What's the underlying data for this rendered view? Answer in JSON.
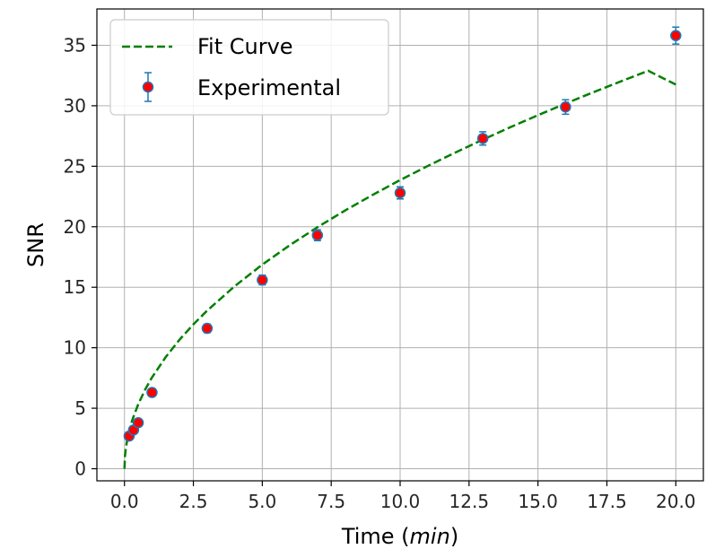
{
  "chart_data": {
    "type": "scatter",
    "xlabel_text": "Time (",
    "xlabel_unit": "min",
    "xlabel_close": ")",
    "ylabel": "SNR",
    "xlim": [
      -1.0,
      21.0
    ],
    "ylim": [
      -1.0,
      38.0
    ],
    "xticks": [
      0.0,
      2.5,
      5.0,
      7.5,
      10.0,
      12.5,
      15.0,
      17.5,
      20.0
    ],
    "xtick_labels": [
      "0.0",
      "2.5",
      "5.0",
      "7.5",
      "10.0",
      "12.5",
      "15.0",
      "17.5",
      "20.0"
    ],
    "yticks": [
      0,
      5,
      10,
      15,
      20,
      25,
      30,
      35
    ],
    "ytick_labels": [
      "0",
      "5",
      "10",
      "15",
      "20",
      "25",
      "30",
      "35"
    ],
    "grid": true,
    "legend_position": "top-left",
    "series": [
      {
        "name": "Fit Curve",
        "kind": "dashed-line",
        "color": "#008000",
        "x": [
          0,
          0.02,
          0.05,
          0.1,
          0.2,
          0.3,
          0.5,
          0.75,
          1.0,
          1.5,
          2.0,
          2.5,
          3.0,
          4.0,
          5.0,
          6.0,
          7.0,
          8.0,
          9.0,
          10.0,
          11.0,
          12.0,
          13.0,
          14.0,
          15.0,
          16.0,
          17.0,
          18.0,
          19.0,
          20.0
        ],
        "y": [
          0,
          1.07,
          1.69,
          2.39,
          3.37,
          4.13,
          5.33,
          6.54,
          7.55,
          9.24,
          10.67,
          11.93,
          13.07,
          15.09,
          16.87,
          18.48,
          19.96,
          21.34,
          22.63,
          23.86,
          25.02,
          26.13,
          27.2,
          28.23,
          29.22,
          30.18,
          31.11,
          32.01,
          32.89,
          31.75
        ]
      },
      {
        "name": "Experimental",
        "kind": "errorbar",
        "marker_color": "#ff0000",
        "edge_color": "#1f77b4",
        "x": [
          0.17,
          0.33,
          0.5,
          1.0,
          3.0,
          5.0,
          7.0,
          10.0,
          13.0,
          16.0,
          20.0
        ],
        "y": [
          2.7,
          3.2,
          3.8,
          6.3,
          11.6,
          15.6,
          19.3,
          22.8,
          27.3,
          29.9,
          35.8
        ],
        "err": [
          0.3,
          0.3,
          0.3,
          0.3,
          0.35,
          0.4,
          0.45,
          0.5,
          0.55,
          0.6,
          0.7
        ]
      }
    ]
  }
}
